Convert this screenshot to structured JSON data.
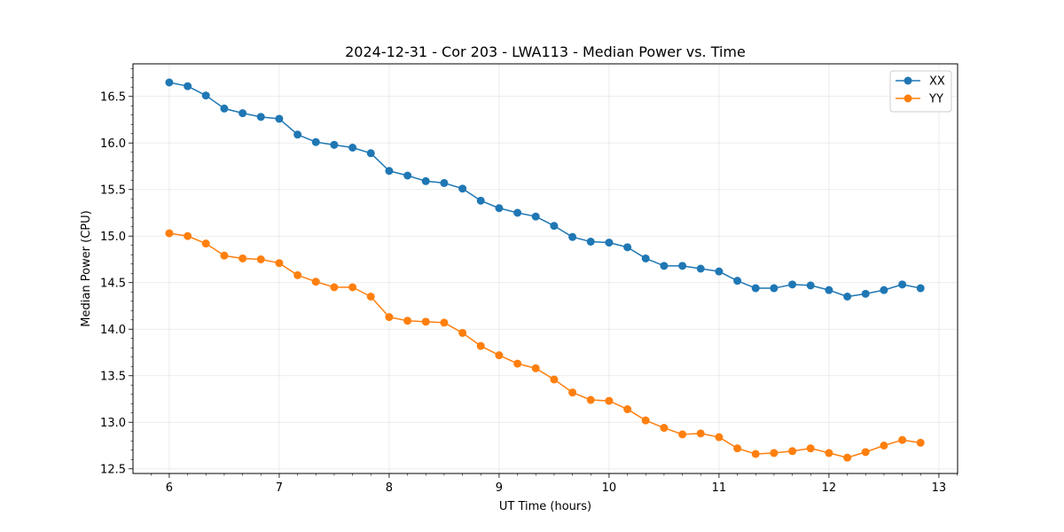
{
  "chart_data": {
    "type": "line",
    "title": "2024-12-31 - Cor 203 - LWA113 - Median Power vs. Time",
    "xlabel": "UT Time (hours)",
    "ylabel": "Median Power (CPU)",
    "xlim": [
      5.67,
      13.17
    ],
    "ylim": [
      12.45,
      16.85
    ],
    "xticks": [
      6,
      7,
      8,
      9,
      10,
      11,
      12,
      13
    ],
    "xtick_labels": [
      "6",
      "7",
      "8",
      "9",
      "10",
      "11",
      "12",
      "13"
    ],
    "yticks": [
      12.5,
      13.0,
      13.5,
      14.0,
      14.5,
      15.0,
      15.5,
      16.0,
      16.5
    ],
    "ytick_labels": [
      "12.5",
      "13.0",
      "13.5",
      "14.0",
      "14.5",
      "15.0",
      "15.5",
      "16.0",
      "16.5"
    ],
    "grid": true,
    "legend_position": "top-right",
    "x": [
      6.0,
      6.167,
      6.333,
      6.5,
      6.667,
      6.833,
      7.0,
      7.167,
      7.333,
      7.5,
      7.667,
      7.833,
      8.0,
      8.167,
      8.333,
      8.5,
      8.667,
      8.833,
      9.0,
      9.167,
      9.333,
      9.5,
      9.667,
      9.833,
      10.0,
      10.167,
      10.333,
      10.5,
      10.667,
      10.833,
      11.0,
      11.167,
      11.333,
      11.5,
      11.667,
      11.833,
      12.0,
      12.167,
      12.333,
      12.5,
      12.667,
      12.833
    ],
    "series": [
      {
        "name": "XX",
        "color": "#1f77b4",
        "values": [
          16.65,
          16.61,
          16.51,
          16.37,
          16.32,
          16.28,
          16.26,
          16.09,
          16.01,
          15.98,
          15.95,
          15.89,
          15.7,
          15.65,
          15.59,
          15.57,
          15.51,
          15.38,
          15.3,
          15.25,
          15.21,
          15.11,
          14.99,
          14.94,
          14.93,
          14.88,
          14.76,
          14.68,
          14.68,
          14.65,
          14.62,
          14.52,
          14.44,
          14.44,
          14.48,
          14.47,
          14.42,
          14.35,
          14.38,
          14.42,
          14.48,
          14.44
        ]
      },
      {
        "name": "YY",
        "color": "#ff7f0e",
        "values": [
          15.03,
          15.0,
          14.92,
          14.79,
          14.76,
          14.75,
          14.71,
          14.58,
          14.51,
          14.45,
          14.45,
          14.35,
          14.13,
          14.09,
          14.08,
          14.07,
          13.96,
          13.82,
          13.72,
          13.63,
          13.58,
          13.46,
          13.32,
          13.24,
          13.23,
          13.14,
          13.02,
          12.94,
          12.87,
          12.88,
          12.84,
          12.72,
          12.66,
          12.67,
          12.69,
          12.72,
          12.67,
          12.62,
          12.68,
          12.75,
          12.81,
          12.78
        ]
      }
    ]
  }
}
